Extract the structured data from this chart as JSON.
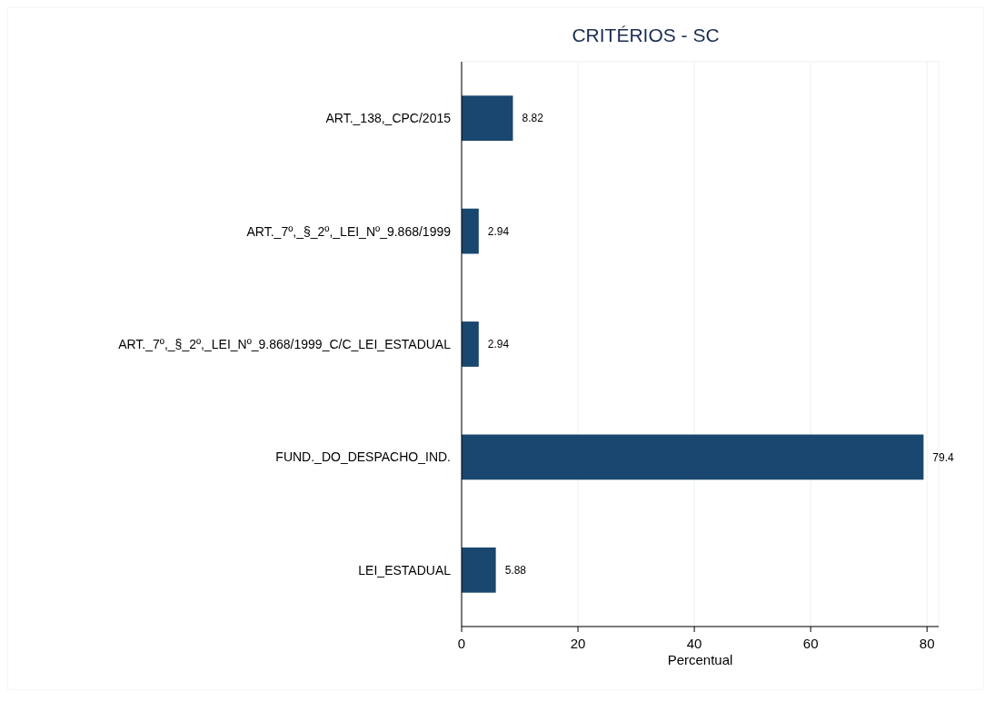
{
  "chart_data": {
    "type": "bar",
    "orientation": "horizontal",
    "title": "CRITÉRIOS - SC",
    "xlabel": "Percentual",
    "categories": [
      "ART._138,_CPC/2015",
      "ART._7º,_§_2º,_LEI_Nº_9.868/1999",
      "ART._7º,_§_2º,_LEI_Nº_9.868/1999_C/C_LEI_ESTADUAL",
      "FUND._DO_DESPACHO_IND.",
      "LEI_ESTADUAL"
    ],
    "values": [
      8.82,
      2.94,
      2.94,
      79.4,
      5.88
    ],
    "color": "#1a476f",
    "xlim": [
      0,
      82
    ],
    "xticks": [
      0,
      20,
      40,
      60,
      80
    ],
    "grid": "x",
    "data_labels": true
  }
}
